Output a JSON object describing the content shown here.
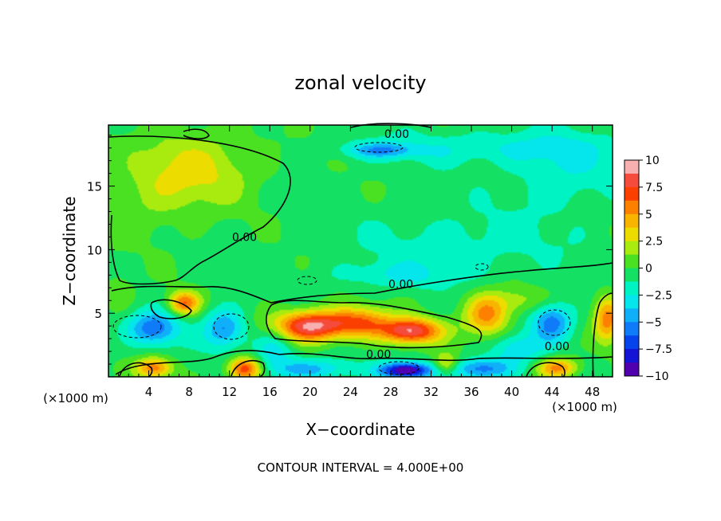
{
  "chart_data": {
    "type": "heatmap",
    "title": "zonal velocity",
    "xlabel": "X−coordinate",
    "ylabel": "Z−coordinate",
    "x_unit": "(×1000 m)",
    "x_unit_right": "(×1000 m)",
    "footer": "CONTOUR INTERVAL = 4.000E+00",
    "xlim": [
      0,
      50
    ],
    "ylim": [
      0,
      19.8
    ],
    "x_ticks": [
      4,
      8,
      12,
      16,
      20,
      24,
      28,
      32,
      36,
      40,
      44,
      48
    ],
    "x_tick_labels": [
      "4",
      "8",
      "12",
      "16",
      "20",
      "24",
      "28",
      "32",
      "36",
      "40",
      "44",
      "48"
    ],
    "y_ticks": [
      5,
      10,
      15
    ],
    "y_tick_labels": [
      "5",
      "10",
      "15"
    ],
    "contour_labels": [
      {
        "text": "0.00",
        "x": 28.6,
        "y": 19.1
      },
      {
        "text": "0.00",
        "x": 13.5,
        "y": 11.0
      },
      {
        "text": "0.00",
        "x": 29.0,
        "y": 7.3
      },
      {
        "text": "0.00",
        "x": 26.8,
        "y": 1.8
      },
      {
        "text": "0.00",
        "x": 44.5,
        "y": 2.4
      }
    ],
    "colorbar": {
      "min": -10,
      "max": 10,
      "ticks": [
        10,
        7.5,
        5,
        2.5,
        0,
        -2.5,
        -5,
        -7.5,
        -10
      ],
      "tick_labels": [
        "10",
        "7.5",
        "5",
        "2.5",
        "0",
        "−2.5",
        "−5",
        "−7.5",
        "−10"
      ]
    },
    "features": [
      {
        "x": 9.0,
        "z": 16.5,
        "value": 3.0,
        "sx": 6.0,
        "sz": 3.0
      },
      {
        "x": 4.0,
        "z": 14.0,
        "value": 1.5,
        "sx": 5.0,
        "sz": 3.0
      },
      {
        "x": 27.0,
        "z": 17.8,
        "value": -4.0,
        "sx": 3.5,
        "sz": 0.6
      },
      {
        "x": 38.0,
        "z": 18.0,
        "value": -2.0,
        "sx": 12.0,
        "sz": 1.3
      },
      {
        "x": 45.0,
        "z": 16.0,
        "value": -2.0,
        "sx": 5.0,
        "sz": 3.0
      },
      {
        "x": 35.0,
        "z": 10.5,
        "value": -1.5,
        "sx": 10.0,
        "sz": 2.5
      },
      {
        "x": 20.0,
        "z": 4.0,
        "value": 9.5,
        "sx": 3.5,
        "sz": 1.2
      },
      {
        "x": 30.0,
        "z": 3.6,
        "value": 9.0,
        "sx": 3.0,
        "sz": 1.0
      },
      {
        "x": 25.0,
        "z": 4.3,
        "value": 6.0,
        "sx": 3.0,
        "sz": 1.2
      },
      {
        "x": 37.5,
        "z": 4.8,
        "value": 6.0,
        "sx": 2.2,
        "sz": 1.6
      },
      {
        "x": 7.5,
        "z": 5.8,
        "value": 6.5,
        "sx": 1.5,
        "sz": 0.9
      },
      {
        "x": 13.5,
        "z": 0.6,
        "value": 8.0,
        "sx": 1.6,
        "sz": 0.9
      },
      {
        "x": 4.5,
        "z": 0.7,
        "value": 6.0,
        "sx": 1.8,
        "sz": 0.8
      },
      {
        "x": 44.5,
        "z": 0.7,
        "value": 6.0,
        "sx": 2.0,
        "sz": 0.8
      },
      {
        "x": 49.5,
        "z": 4.5,
        "value": 6.0,
        "sx": 1.3,
        "sz": 1.8
      },
      {
        "x": 33.5,
        "z": 1.0,
        "value": 4.0,
        "sx": 1.2,
        "sz": 0.8
      },
      {
        "x": 4.5,
        "z": 3.8,
        "value": -5.5,
        "sx": 2.5,
        "sz": 1.3
      },
      {
        "x": 11.5,
        "z": 3.8,
        "value": -5.0,
        "sx": 2.0,
        "sz": 1.5
      },
      {
        "x": 29.5,
        "z": 0.5,
        "value": -10.0,
        "sx": 2.5,
        "sz": 0.6
      },
      {
        "x": 20.0,
        "z": 0.6,
        "value": -4.0,
        "sx": 4.0,
        "sz": 0.8
      },
      {
        "x": 37.0,
        "z": 0.6,
        "value": -5.5,
        "sx": 3.0,
        "sz": 0.8
      },
      {
        "x": 44.0,
        "z": 4.3,
        "value": -5.5,
        "sx": 2.0,
        "sz": 1.5
      },
      {
        "x": 40.5,
        "z": 2.2,
        "value": -3.0,
        "sx": 2.5,
        "sz": 1.2
      },
      {
        "x": 16.5,
        "z": 2.2,
        "value": -3.0,
        "sx": 2.0,
        "sz": 1.5
      },
      {
        "x": 28.5,
        "z": 8.0,
        "value": -2.0,
        "sx": 6.0,
        "sz": 1.0
      },
      {
        "x": 40.5,
        "z": 6.0,
        "value": 2.0,
        "sx": 3.0,
        "sz": 1.0
      },
      {
        "x": 1.0,
        "z": 6.5,
        "value": 1.5,
        "sx": 1.5,
        "sz": 1.5
      }
    ]
  }
}
